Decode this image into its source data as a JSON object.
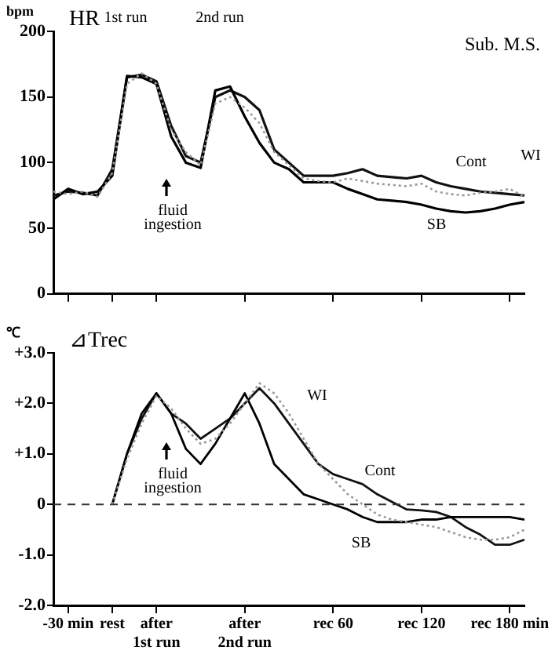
{
  "chart_data": [
    {
      "type": "line",
      "title": "HR",
      "ylabel": "bpm",
      "ylim": [
        0,
        200
      ],
      "yticks": [
        0,
        50,
        100,
        150,
        200
      ],
      "categories": [
        null,
        null,
        null,
        null,
        null,
        null,
        null,
        null,
        null,
        null,
        null,
        null,
        null,
        null,
        null,
        null,
        null,
        null,
        null,
        null,
        null,
        null,
        null,
        null,
        null,
        null,
        null,
        null,
        null,
        null,
        null,
        null,
        null
      ],
      "tick_labels": "y",
      "grid": false,
      "legend": false,
      "marker": "none",
      "annotations": [
        "1st run",
        "2nd run",
        "Sub. M.S.",
        "fluid\ningestion"
      ],
      "series": [
        {
          "name": "Cont",
          "color": "#111111",
          "values": [
            75,
            78,
            77,
            75,
            95,
            165,
            167,
            162,
            128,
            105,
            100,
            150,
            155,
            150,
            140,
            110,
            100,
            90,
            90,
            90,
            92,
            95,
            90,
            89,
            88,
            90,
            85,
            82,
            80,
            78,
            77,
            76,
            75
          ]
        },
        {
          "name": "SB",
          "color": "#000000",
          "values": [
            72,
            80,
            76,
            78,
            90,
            166,
            165,
            160,
            120,
            100,
            96,
            155,
            158,
            135,
            115,
            100,
            95,
            85,
            85,
            85,
            80,
            76,
            72,
            71,
            70,
            68,
            65,
            63,
            62,
            63,
            65,
            68,
            70
          ]
        },
        {
          "name": "WI",
          "color": "#999999",
          "line_style": "dotted",
          "values": [
            78,
            76,
            78,
            74,
            92,
            160,
            168,
            160,
            125,
            108,
            98,
            145,
            150,
            142,
            130,
            108,
            98,
            88,
            86,
            85,
            88,
            86,
            84,
            83,
            82,
            84,
            78,
            76,
            75,
            77,
            78,
            80,
            74
          ]
        }
      ]
    },
    {
      "type": "line",
      "title": "⊿Trec",
      "ylabel": "℃",
      "ylim": [
        -2,
        3
      ],
      "yticks": [
        {
          "value": -2,
          "label": "-2.0"
        },
        {
          "value": -1,
          "label": "-1.0"
        },
        0,
        {
          "value": 1,
          "label": "+1.0"
        },
        {
          "value": 2,
          "label": "+2.0"
        },
        {
          "value": 3,
          "label": "+3.0"
        }
      ],
      "categories": [
        null,
        "-30 min",
        null,
        null,
        "rest",
        null,
        null,
        "after\n1st run",
        null,
        null,
        null,
        null,
        null,
        "after\n2nd run",
        null,
        null,
        null,
        null,
        null,
        "rec 60",
        null,
        null,
        null,
        null,
        null,
        "rec 120",
        null,
        null,
        null,
        null,
        null,
        "rec 180 min",
        null
      ],
      "grid": false,
      "legend": false,
      "marker": "none",
      "ref_lines": [
        {
          "axis": "y",
          "value": 0,
          "line_style": "dashed",
          "color": "#333333"
        }
      ],
      "annotations": [
        "fluid\ningestion"
      ],
      "series": [
        {
          "name": "Cont",
          "color": "#111111",
          "values": [
            null,
            null,
            null,
            null,
            0,
            1.0,
            1.7,
            2.2,
            1.8,
            1.6,
            1.3,
            1.5,
            1.7,
            2.0,
            2.3,
            2.0,
            1.6,
            1.2,
            0.8,
            0.6,
            0.5,
            0.4,
            0.2,
            0.05,
            -0.1,
            -0.12,
            -0.15,
            -0.25,
            -0.45,
            -0.6,
            -0.8,
            -0.8,
            -0.7
          ]
        },
        {
          "name": "SB",
          "color": "#000000",
          "values": [
            null,
            null,
            null,
            null,
            0,
            1.0,
            1.8,
            2.2,
            1.8,
            1.1,
            0.8,
            1.2,
            1.7,
            2.2,
            1.6,
            0.8,
            0.5,
            0.2,
            0.1,
            0.0,
            -0.1,
            -0.25,
            -0.35,
            -0.35,
            -0.35,
            -0.3,
            -0.3,
            -0.25,
            -0.25,
            -0.25,
            -0.25,
            -0.25,
            -0.3
          ]
        },
        {
          "name": "WI",
          "color": "#999999",
          "line_style": "dotted",
          "values": [
            null,
            null,
            null,
            null,
            0,
            0.9,
            1.6,
            2.15,
            1.9,
            1.5,
            1.2,
            1.3,
            1.6,
            2.0,
            2.4,
            2.2,
            1.8,
            1.3,
            0.8,
            0.5,
            0.2,
            0.0,
            -0.2,
            -0.3,
            -0.35,
            -0.4,
            -0.45,
            -0.55,
            -0.65,
            -0.7,
            -0.7,
            -0.65,
            -0.5
          ]
        }
      ]
    }
  ]
}
